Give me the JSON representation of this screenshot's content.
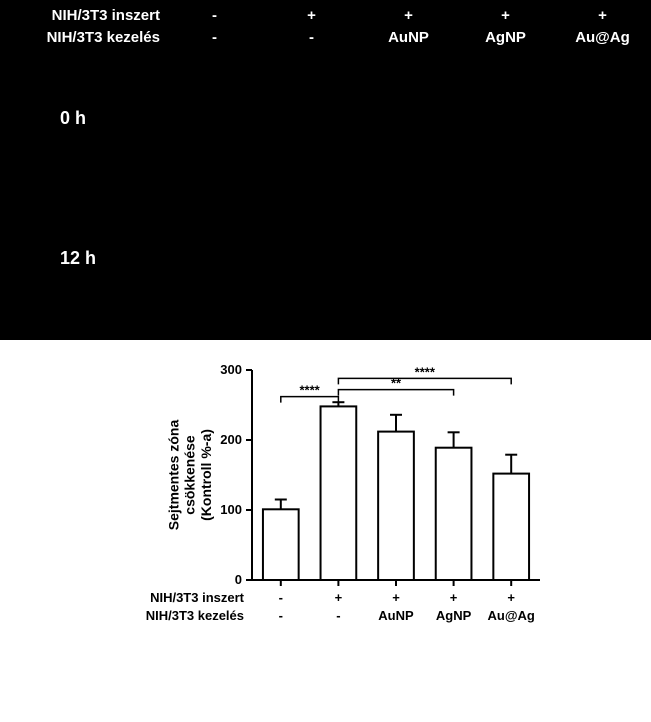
{
  "header": {
    "row1_label": "NIH/3T3 inszert",
    "row2_label": "NIH/3T3 kezelés",
    "col_inszert": [
      "-",
      "+",
      "+",
      "+",
      "+"
    ],
    "col_kezeles": [
      "-",
      "-",
      "AuNP",
      "AgNP",
      "Au@Ag"
    ]
  },
  "time_labels": {
    "t0": "0 h",
    "t12": "12 h"
  },
  "chart": {
    "type": "bar",
    "categories": [
      "-",
      "+",
      "+",
      "+",
      "+"
    ],
    "kezeles": [
      "-",
      "-",
      "AuNP",
      "AgNP",
      "Au@Ag"
    ],
    "values": [
      101,
      248,
      212,
      189,
      152
    ],
    "errors": [
      14,
      6,
      24,
      22,
      27
    ],
    "bar_fill": "#ffffff",
    "bar_stroke": "#000000",
    "bar_width": 0.62,
    "axis_color": "#000000",
    "ylim": [
      0,
      300
    ],
    "ytick_step": 100,
    "ylabel_line1": "Sejtmentes zóna",
    "ylabel_line2": "csökkenése",
    "ylabel_line3": "(Kontroll %-a)",
    "xlabel_row1": "NIH/3T3 inszert",
    "xlabel_row2": "NIH/3T3 kezelés",
    "sig": [
      {
        "from": 0,
        "to": 1,
        "y": 262,
        "label": "****"
      },
      {
        "from": 1,
        "to": 3,
        "y": 272,
        "label": "**"
      },
      {
        "from": 1,
        "to": 4,
        "y": 288,
        "label": "****"
      }
    ],
    "label_fontsize": 14,
    "tick_fontsize": 13,
    "line_width": 2
  }
}
